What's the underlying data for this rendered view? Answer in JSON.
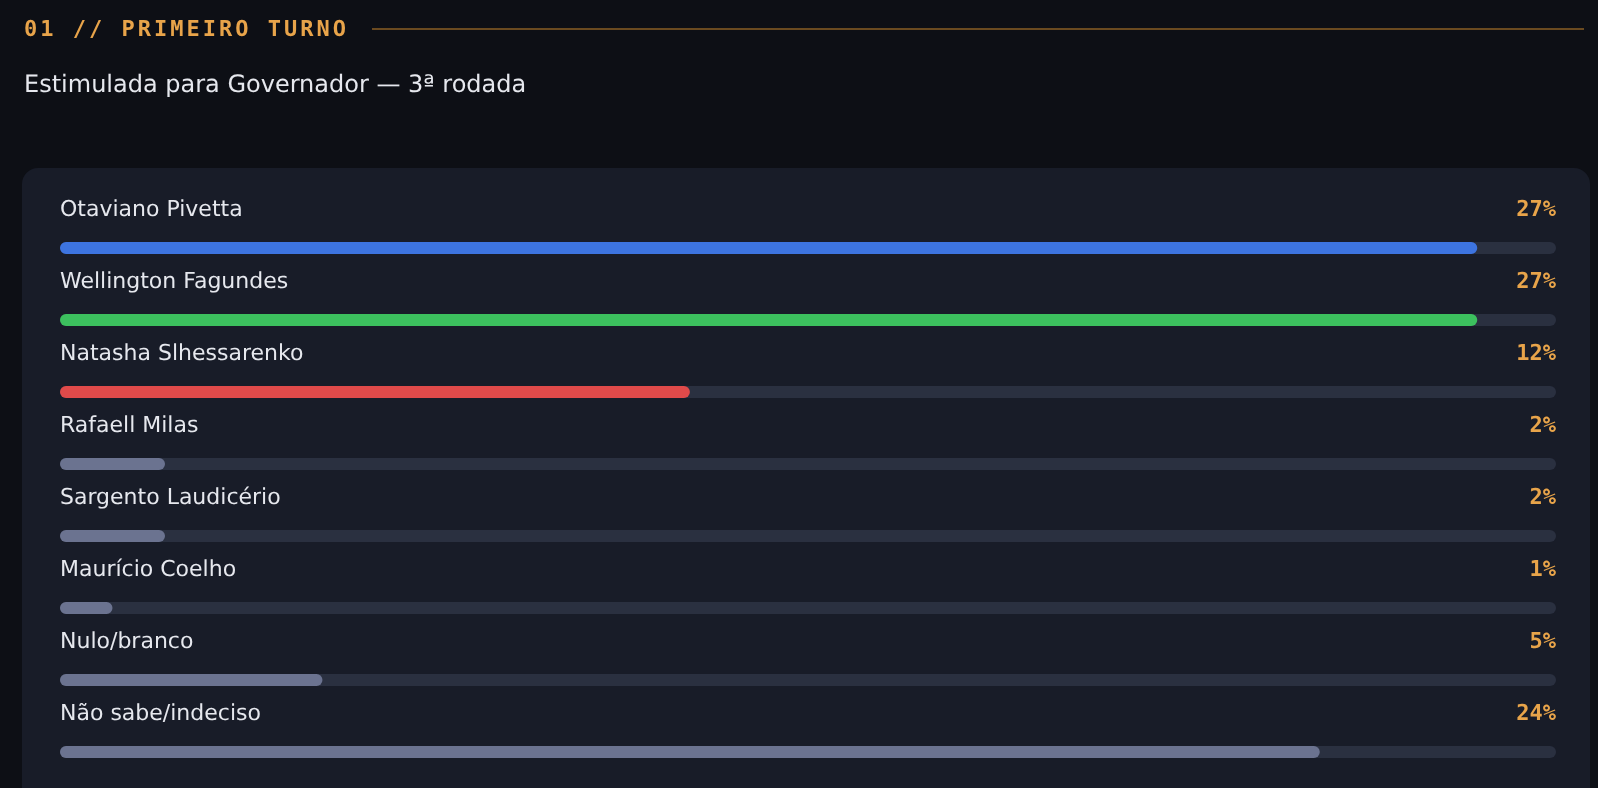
{
  "chart_data": {
    "type": "bar",
    "orientation": "horizontal",
    "title": "01 // PRIMEIRO TURNO",
    "subtitle": "Estimulada para Governador — 3ª rodada",
    "categories": [
      "Otaviano Pivetta",
      "Wellington Fagundes",
      "Natasha Slhessarenko",
      "Rafaell Milas",
      "Sargento Laudicério",
      "Maurício Coelho",
      "Nulo/branco",
      "Não sabe/indeciso"
    ],
    "values": [
      27,
      27,
      12,
      2,
      2,
      1,
      5,
      24
    ],
    "colors": [
      "#3d74e0",
      "#3cc05e",
      "#e04a4a",
      "#6b7390",
      "#6b7390",
      "#6b7390",
      "#6b7390",
      "#6b7390"
    ],
    "value_labels": [
      "27%",
      "27%",
      "12%",
      "2%",
      "2%",
      "1%",
      "5%",
      "24%"
    ],
    "xlim": [
      0,
      28.5
    ],
    "tick_labels": false
  }
}
